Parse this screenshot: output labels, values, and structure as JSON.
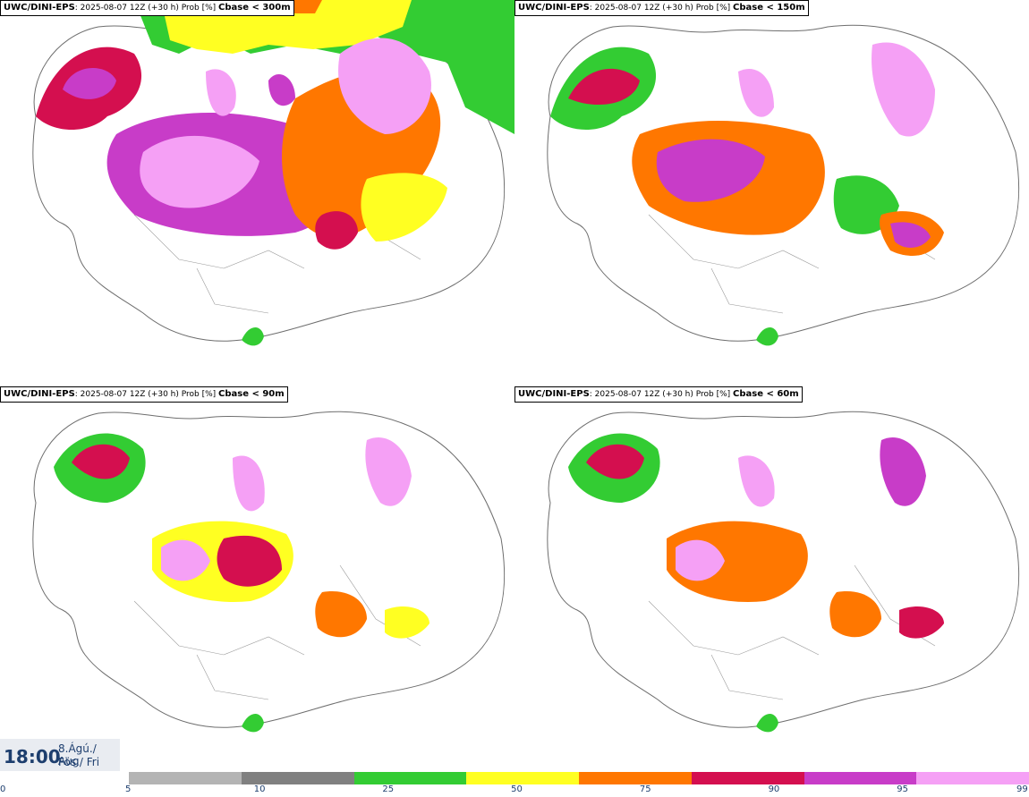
{
  "panels": [
    {
      "model": "UWC/DINI-EPS",
      "run": ": 2025-08-07 12Z (+30 h) Prob [%] ",
      "var": "Cbase < 300m"
    },
    {
      "model": "UWC/DINI-EPS",
      "run": ": 2025-08-07 12Z (+30 h) Prob [%] ",
      "var": "Cbase < 150m"
    },
    {
      "model": "UWC/DINI-EPS",
      "run": ": 2025-08-07 12Z (+30 h) Prob [%] ",
      "var": "Cbase < 90m"
    },
    {
      "model": "UWC/DINI-EPS",
      "run": ": 2025-08-07 12Z (+30 h) Prob [%] ",
      "var": "Cbase < 60m"
    }
  ],
  "time": {
    "clock": "18:00",
    "date_line1": "8.Ágú./ Aug",
    "date_line2": "Fös./ Fri"
  },
  "colorbar": {
    "ticks": [
      "0",
      "5",
      "10",
      "25",
      "50",
      "75",
      "90",
      "95",
      "99"
    ],
    "colors": [
      "#b4b4b4",
      "#808080",
      "#33cc33",
      "#ffff22",
      "#ff7700",
      "#d40f4f",
      "#c83cc8",
      "#f5a0f5"
    ]
  }
}
